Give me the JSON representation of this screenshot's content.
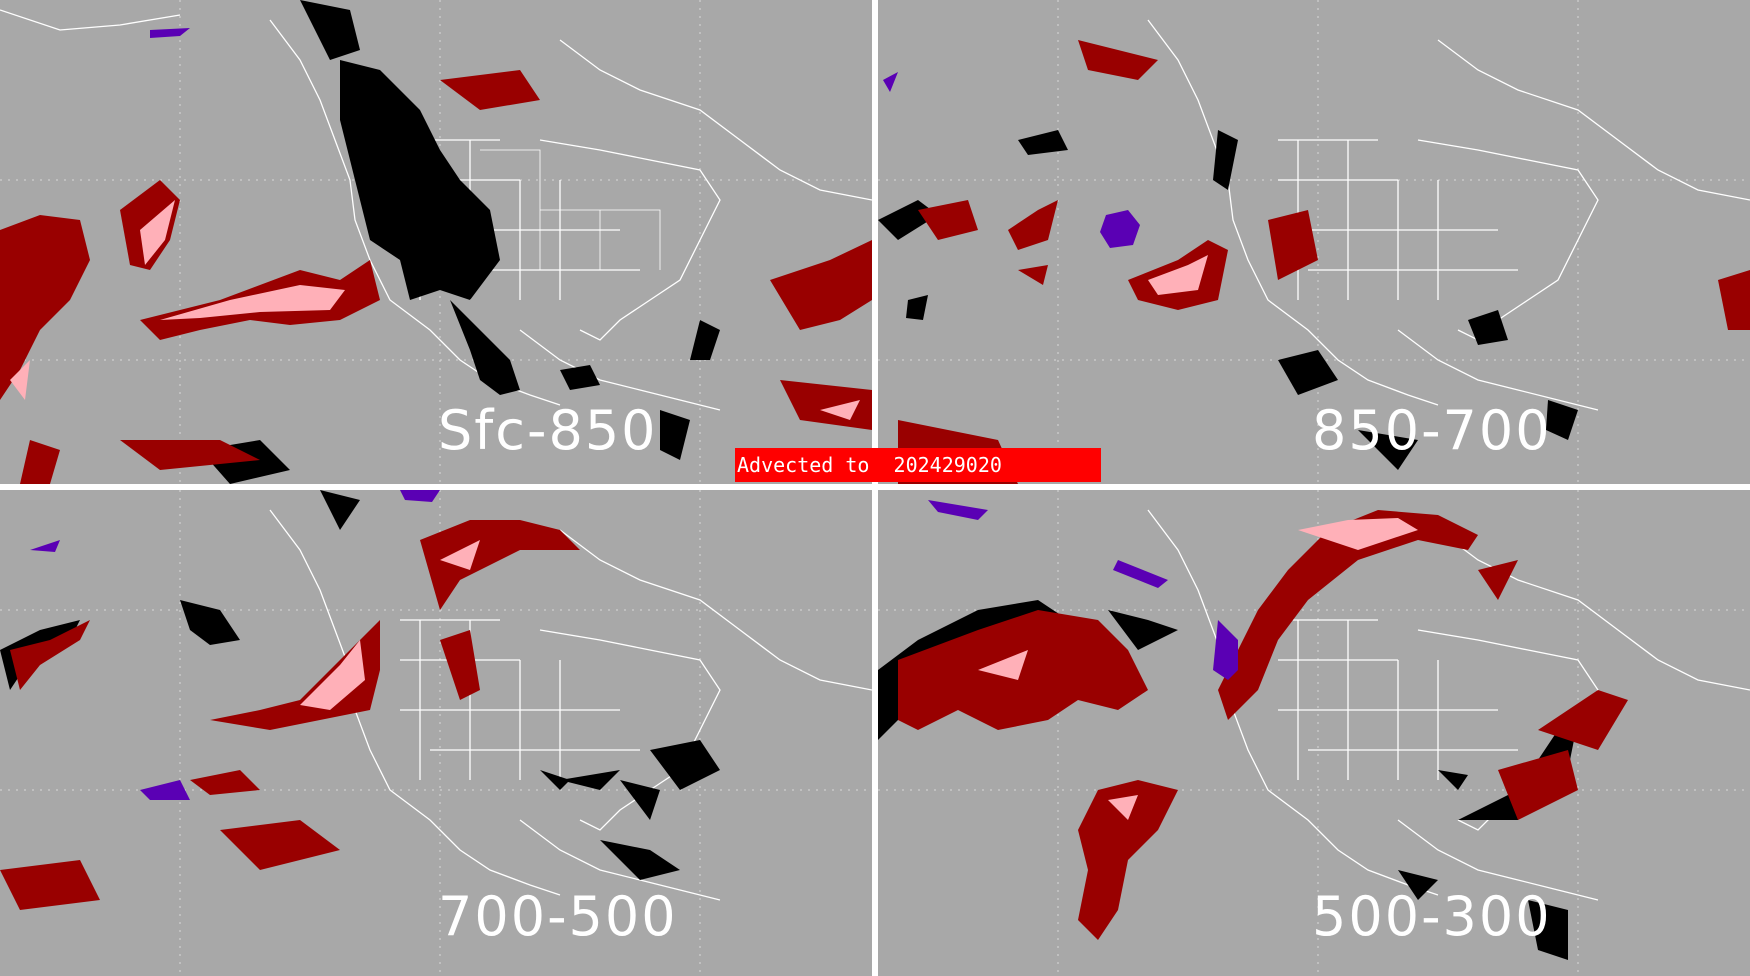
{
  "banner": {
    "prefix": "Advected to",
    "value": "202429020"
  },
  "panels": [
    {
      "id": "p1",
      "label": "Sfc-850"
    },
    {
      "id": "p2",
      "label": "850-700"
    },
    {
      "id": "p3",
      "label": "700-500"
    },
    {
      "id": "p4",
      "label": "500-300"
    }
  ],
  "colors": {
    "background": "#a8a8a8",
    "coastline": "#ffffff",
    "dark_red": "#990000",
    "pink": "#ffb0b8",
    "black": "#000000",
    "purple": "#5a00b4",
    "banner": "#ff0000"
  }
}
